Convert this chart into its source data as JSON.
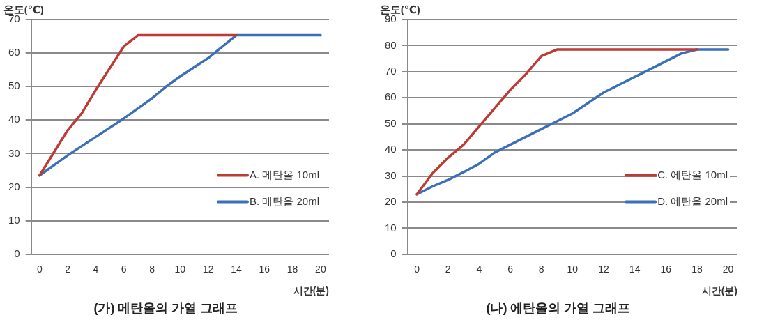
{
  "chart_data": [
    {
      "type": "line",
      "title": "(가) 메탄올의 가열 그래프",
      "xlabel": "시간(분)",
      "ylabel": "온도(℃)",
      "xlim": [
        -0.6,
        20.6
      ],
      "xticks": [
        0,
        2,
        4,
        6,
        8,
        10,
        12,
        14,
        16,
        18,
        20
      ],
      "ylim": [
        0,
        70
      ],
      "yticks": [
        0,
        10,
        20,
        30,
        40,
        50,
        60,
        70
      ],
      "grid": "y",
      "legend": "bottom right",
      "marker": "none",
      "line_style": "solid",
      "series": [
        {
          "name": "A. 메탄올 10ml",
          "color": "#be3a34",
          "x": [
            0,
            2,
            3,
            4,
            5,
            6,
            7,
            14
          ],
          "values": [
            23.5,
            37,
            42,
            49,
            55.5,
            62,
            65.3,
            65.3
          ]
        },
        {
          "name": "B. 메탄올 20ml",
          "color": "#3a6fba",
          "x": [
            0,
            2,
            4,
            6,
            8,
            9,
            10,
            12,
            14,
            16,
            18,
            20
          ],
          "values": [
            23.5,
            29.5,
            35,
            40.5,
            46.5,
            50,
            53,
            58.5,
            65.3,
            65.3,
            65.3,
            65.3
          ]
        }
      ]
    },
    {
      "type": "line",
      "title": "(나) 에탄올의 가열 그래프",
      "xlabel": "시간(분)",
      "ylabel": "온도(℃)",
      "xlim": [
        -0.6,
        20.6
      ],
      "xticks": [
        0,
        2,
        4,
        6,
        8,
        10,
        12,
        14,
        16,
        18,
        20
      ],
      "ylim": [
        0,
        90
      ],
      "yticks": [
        0,
        10,
        20,
        30,
        40,
        50,
        60,
        70,
        80,
        90
      ],
      "grid": "y",
      "legend": "bottom right",
      "marker": "none",
      "line_style": "solid",
      "series": [
        {
          "name": "C. 에탄올 10ml",
          "color": "#be3a34",
          "x": [
            0,
            1,
            2,
            3,
            4,
            5,
            6,
            7,
            8,
            9,
            18
          ],
          "values": [
            23,
            31,
            37,
            42,
            49,
            56,
            63,
            69,
            76,
            78.5,
            78.5
          ]
        },
        {
          "name": "D. 에탄올 20ml",
          "color": "#3a6fba",
          "x": [
            0,
            1,
            2,
            3,
            4,
            5,
            6,
            7,
            8,
            9,
            10,
            11,
            12,
            13,
            14,
            15,
            16,
            17,
            18,
            19,
            20
          ],
          "values": [
            23,
            26,
            28.5,
            31.5,
            34.7,
            39,
            42,
            45,
            48,
            51,
            54,
            58,
            62,
            65,
            68,
            71,
            74,
            77,
            78.5,
            78.5,
            78.5
          ]
        }
      ]
    }
  ]
}
